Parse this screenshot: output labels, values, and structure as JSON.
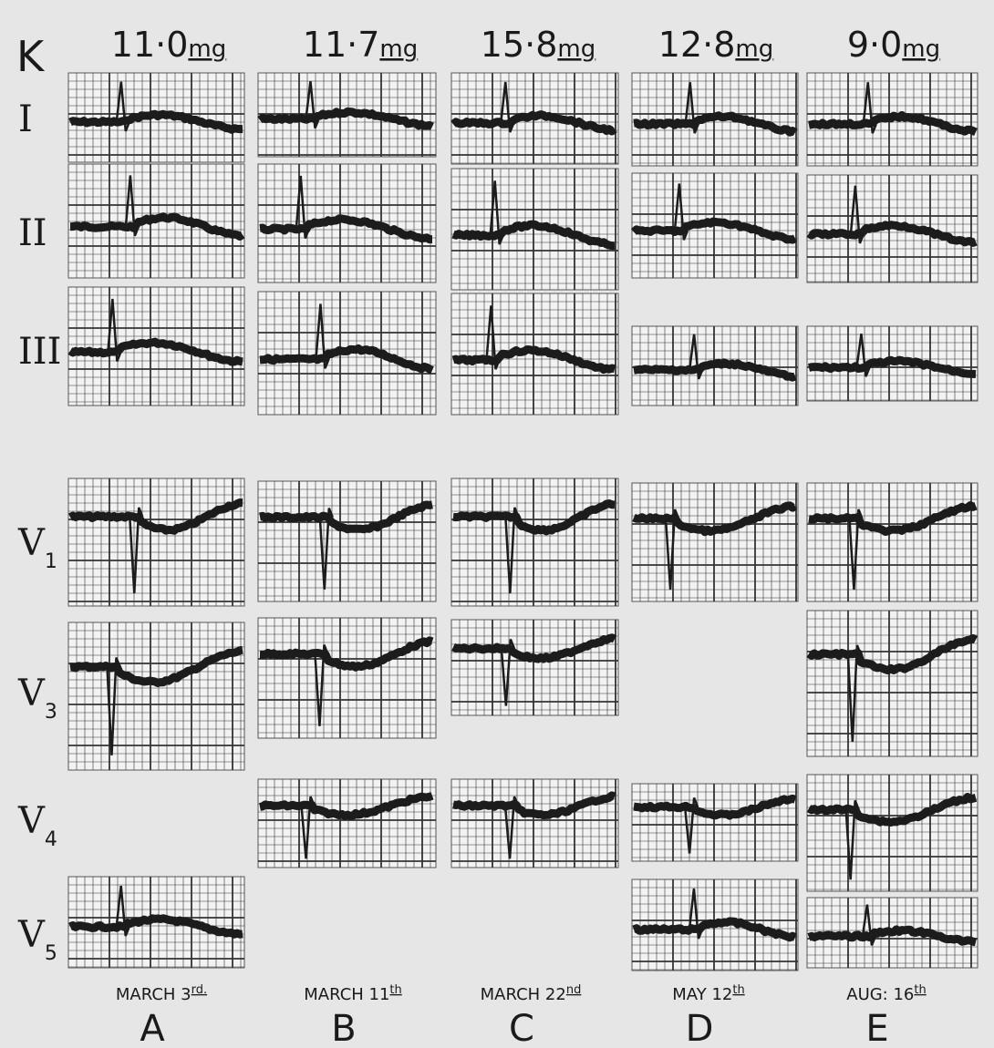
{
  "label": "K",
  "columns": [
    {
      "dose": "11·0",
      "unit": "mg",
      "date": "MARCH 3",
      "date_suffix": "rd.",
      "letter": "A"
    },
    {
      "dose": "11·7",
      "unit": "mg",
      "date": "MARCH 11",
      "date_suffix": "th",
      "letter": "B"
    },
    {
      "dose": "15·8",
      "unit": "mg",
      "date": "MARCH 22",
      "date_suffix": "nd",
      "letter": "C"
    },
    {
      "dose": "12·8",
      "unit": "mg",
      "date": "MAY 12",
      "date_suffix": "th",
      "letter": "D"
    },
    {
      "dose": "9·0",
      "unit": "mg",
      "date": "AUG: 16",
      "date_suffix": "th",
      "letter": "E"
    }
  ],
  "leads": [
    {
      "name": "I"
    },
    {
      "name": "II"
    },
    {
      "name": "III"
    },
    {
      "name": "V",
      "sub": "1"
    },
    {
      "name": "V",
      "sub": "3"
    },
    {
      "name": "V",
      "sub": "4"
    },
    {
      "name": "V",
      "sub": "5"
    }
  ]
}
